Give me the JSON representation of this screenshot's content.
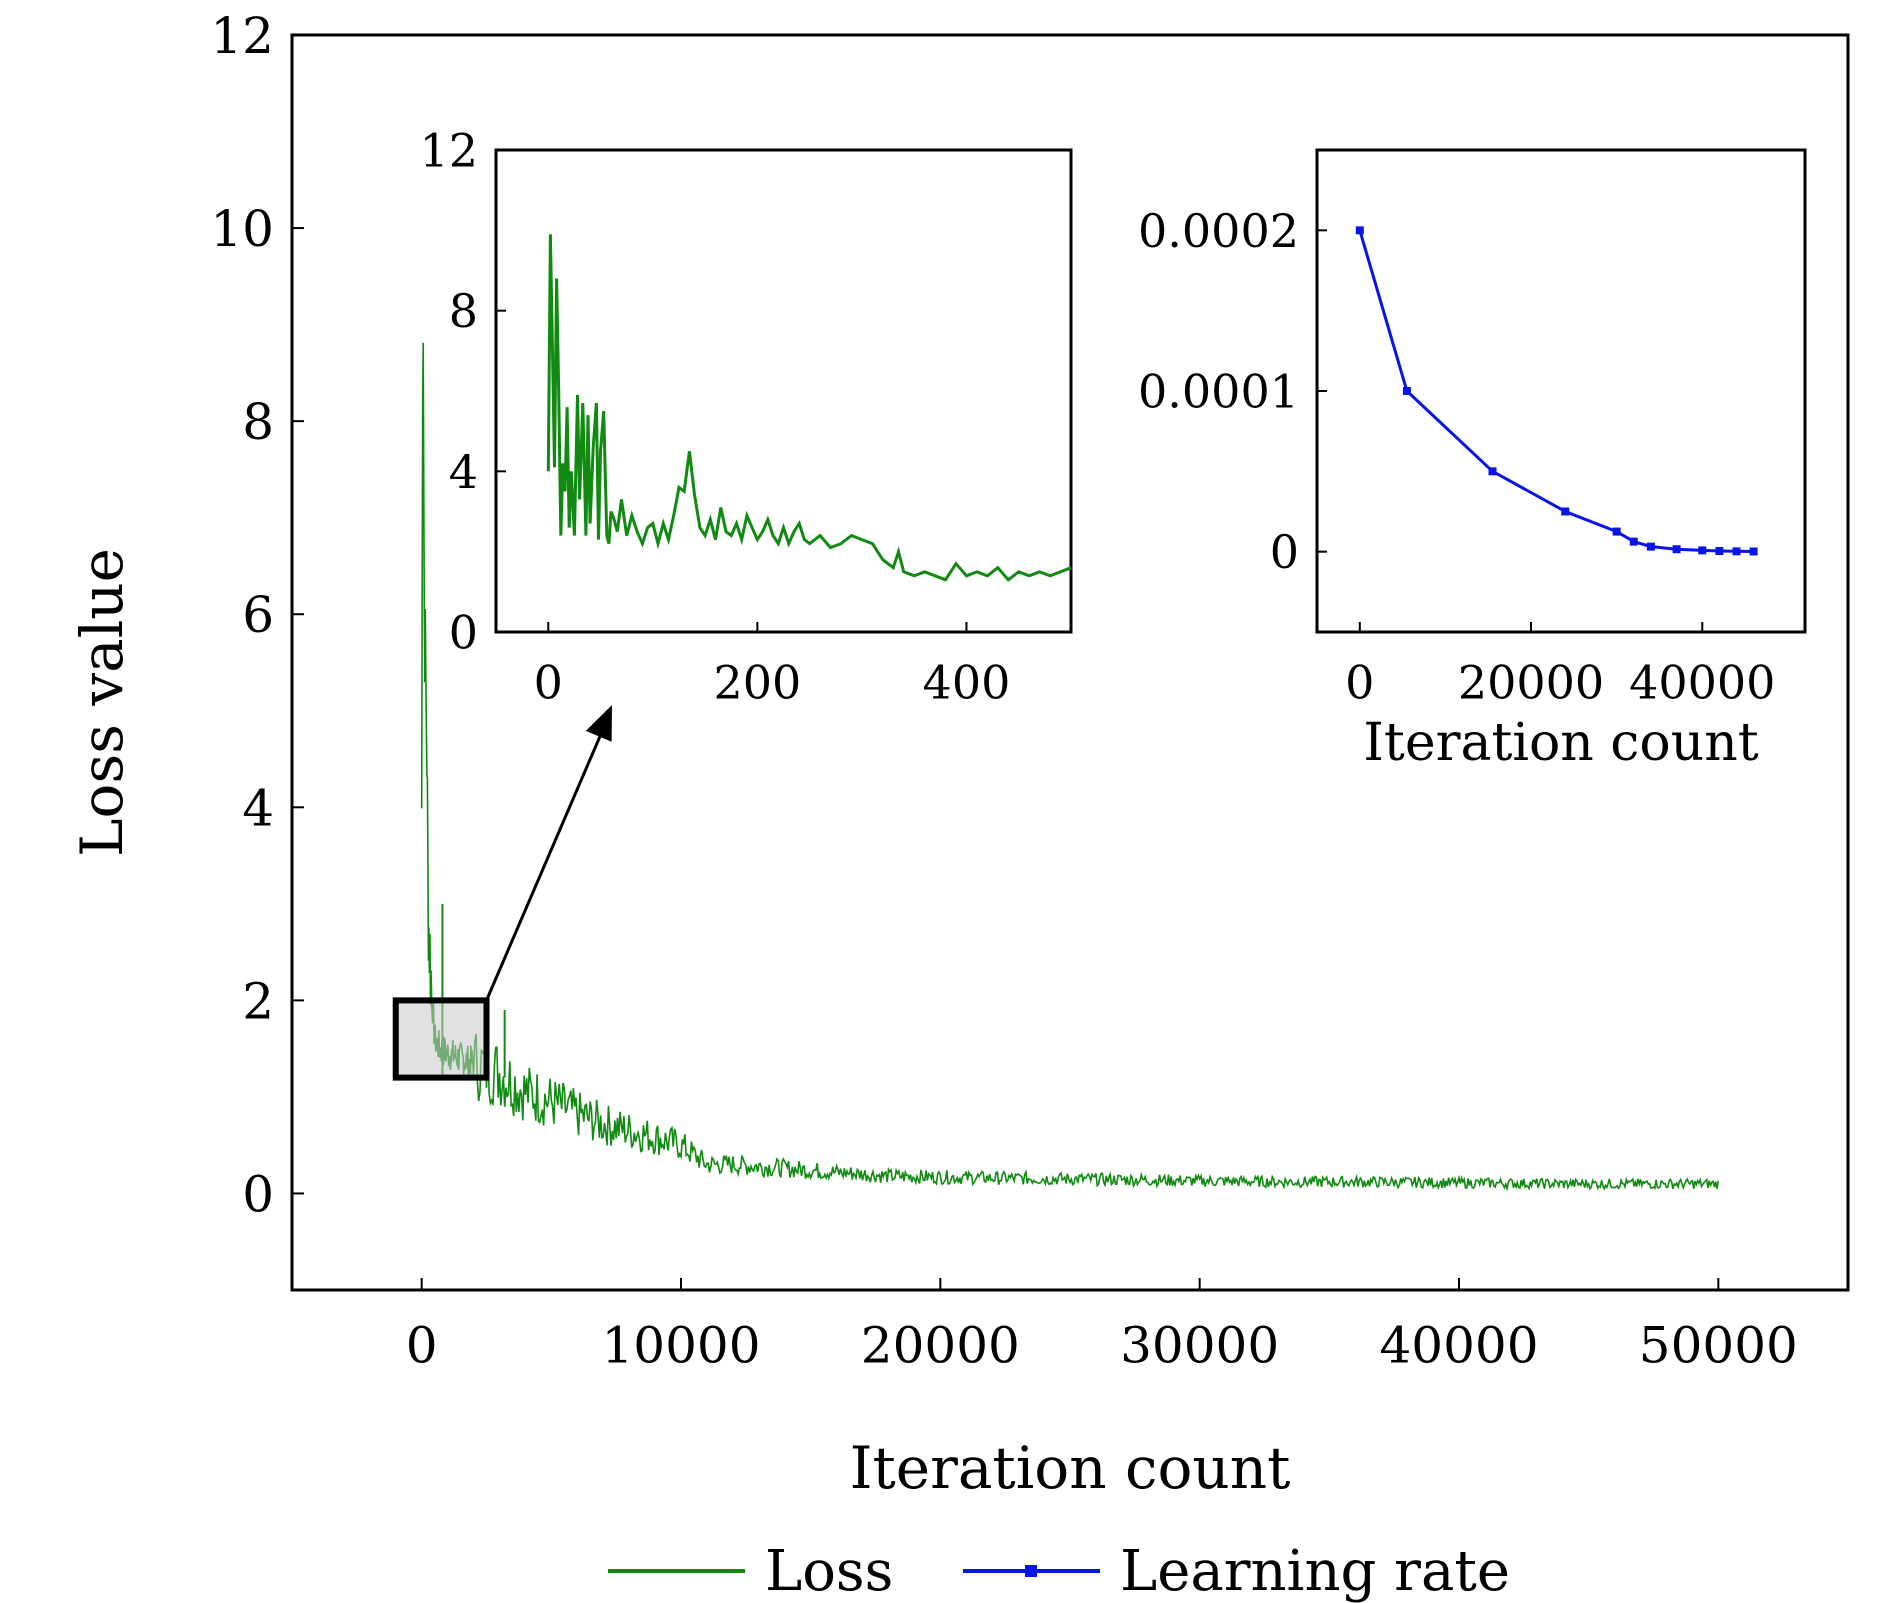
{
  "colors": {
    "loss": "#118a11",
    "learning_rate": "#0a14e6",
    "axis": "#000000",
    "zoom_box_fill": "#c8c8c8"
  },
  "legend": {
    "placement": "bottom-center",
    "items": [
      {
        "label": "Loss",
        "color": "#118a11",
        "marker": "none"
      },
      {
        "label": "Learning rate",
        "color": "#0a14e6",
        "marker": "square"
      }
    ]
  },
  "chart_data": [
    {
      "id": "main",
      "type": "line",
      "xlabel": "Iteration count",
      "ylabel": "Loss value",
      "xlim": [
        -5000,
        55000
      ],
      "ylim": [
        -1,
        12
      ],
      "xticks": [
        0,
        10000,
        20000,
        30000,
        40000,
        50000
      ],
      "yticks": [
        0,
        2,
        4,
        6,
        8,
        10,
        12
      ],
      "grid": false,
      "series": [
        {
          "name": "Loss",
          "color": "#118a11",
          "x": [
            0,
            50,
            100,
            150,
            200,
            250,
            300,
            400,
            500,
            700,
            1000,
            1500,
            2000,
            2500,
            3000,
            4000,
            5000,
            6000,
            7000,
            8000,
            9000,
            10000,
            11000,
            12000,
            14000,
            16000,
            18000,
            20000,
            22000,
            25000,
            28000,
            30000,
            33000,
            36000,
            40000,
            44000,
            47000,
            50000
          ],
          "values": [
            4.0,
            9.9,
            6.0,
            5.5,
            4.6,
            3.0,
            2.6,
            2.0,
            1.6,
            1.5,
            1.45,
            1.4,
            1.35,
            1.3,
            1.25,
            1.05,
            0.95,
            0.82,
            0.72,
            0.65,
            0.58,
            0.5,
            0.3,
            0.3,
            0.26,
            0.22,
            0.18,
            0.17,
            0.16,
            0.15,
            0.14,
            0.13,
            0.12,
            0.12,
            0.11,
            0.1,
            0.1,
            0.1
          ],
          "spikes": [
            {
              "x": 800,
              "value": 3.0
            },
            {
              "x": 3200,
              "value": 1.9
            }
          ]
        }
      ],
      "zoom_region": {
        "x": [
          -1000,
          2500
        ],
        "y": [
          1.2,
          2.0
        ]
      }
    },
    {
      "id": "inset-loss",
      "type": "line",
      "xlim": [
        -50,
        500
      ],
      "ylim": [
        0,
        12
      ],
      "xticks": [
        0,
        200,
        400
      ],
      "yticks": [
        0,
        4,
        8,
        12
      ],
      "grid": false,
      "series": [
        {
          "name": "Loss",
          "color": "#118a11",
          "x": [
            0,
            2,
            4,
            6,
            8,
            10,
            12,
            14,
            16,
            18,
            20,
            22,
            25,
            28,
            30,
            33,
            36,
            38,
            40,
            43,
            46,
            48,
            50,
            53,
            56,
            58,
            60,
            63,
            66,
            70,
            75,
            80,
            85,
            90,
            95,
            100,
            105,
            110,
            115,
            120,
            125,
            130,
            135,
            140,
            145,
            150,
            155,
            160,
            165,
            170,
            175,
            180,
            185,
            190,
            195,
            200,
            205,
            210,
            215,
            220,
            225,
            230,
            235,
            240,
            245,
            250,
            260,
            270,
            280,
            290,
            300,
            310,
            320,
            330,
            335,
            340,
            350,
            360,
            370,
            380,
            390,
            400,
            410,
            420,
            430,
            440,
            450,
            460,
            470,
            480,
            490,
            500
          ],
          "values": [
            4.0,
            9.9,
            7.0,
            4.1,
            8.8,
            6.0,
            2.4,
            4.2,
            3.5,
            5.6,
            2.6,
            4.0,
            2.4,
            5.9,
            3.3,
            5.7,
            2.4,
            5.4,
            2.7,
            4.6,
            5.7,
            2.3,
            4.5,
            5.5,
            2.4,
            2.2,
            3.0,
            2.8,
            2.5,
            3.3,
            2.4,
            2.9,
            2.5,
            2.2,
            2.6,
            2.7,
            2.2,
            2.7,
            2.3,
            2.9,
            3.6,
            3.5,
            4.5,
            3.4,
            2.6,
            2.4,
            2.8,
            2.3,
            3.1,
            2.5,
            2.4,
            2.7,
            2.3,
            2.9,
            2.6,
            2.3,
            2.5,
            2.8,
            2.4,
            2.2,
            2.6,
            2.2,
            2.5,
            2.7,
            2.3,
            2.2,
            2.4,
            2.1,
            2.2,
            2.4,
            2.3,
            2.2,
            1.8,
            1.6,
            2.0,
            1.5,
            1.4,
            1.5,
            1.4,
            1.3,
            1.7,
            1.4,
            1.5,
            1.4,
            1.6,
            1.3,
            1.5,
            1.4,
            1.5,
            1.4,
            1.5,
            1.6
          ]
        }
      ]
    },
    {
      "id": "inset-lr",
      "type": "line",
      "xlabel": "Iteration count",
      "xlim": [
        -5000,
        52000
      ],
      "ylim": [
        -5e-05,
        0.00025
      ],
      "xticks": [
        0,
        20000,
        40000
      ],
      "yticks": [
        0,
        0.0001,
        0.0002
      ],
      "ytick_labels": [
        "0",
        "0.0001",
        "0.0002"
      ],
      "grid": false,
      "series": [
        {
          "name": "Learning rate",
          "color": "#0a14e6",
          "marker": "square",
          "x": [
            0,
            5500,
            15500,
            24000,
            30000,
            32000,
            34000,
            37000,
            40000,
            42000,
            44000,
            46000
          ],
          "values": [
            0.0002,
            0.0001,
            5e-05,
            2.5e-05,
            1.25e-05,
            6.25e-06,
            3.125e-06,
            1.5e-06,
            8e-07,
            4e-07,
            2e-07,
            1e-07
          ]
        }
      ]
    }
  ]
}
